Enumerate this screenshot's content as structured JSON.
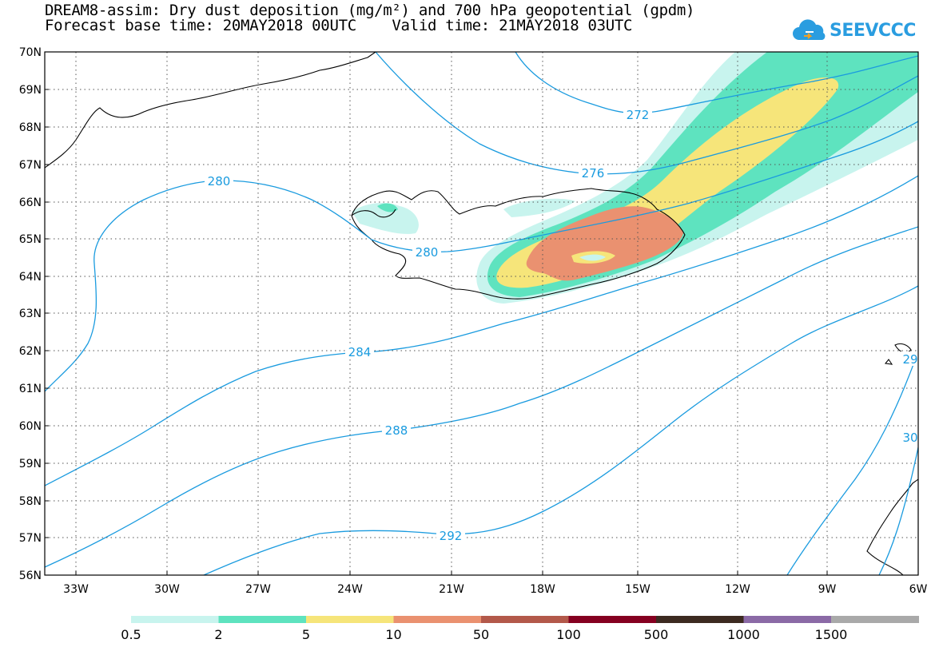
{
  "title": {
    "line1": "DREAM8-assim: Dry dust deposition (mg/m²) and 700 hPa geopotential (gpdm)",
    "line2": "Forecast base time: 20MAY2018 00UTC    Valid time: 21MAY2018 03UTC"
  },
  "logo": {
    "text": "SEEVCCC",
    "icon": "cloud-icon",
    "color": "#2a9de0"
  },
  "map": {
    "lat_labels": [
      "70N",
      "69N",
      "68N",
      "67N",
      "66N",
      "65N",
      "64N",
      "63N",
      "62N",
      "61N",
      "60N",
      "59N",
      "58N",
      "57N",
      "56N"
    ],
    "lon_labels": [
      "33W",
      "30W",
      "27W",
      "24W",
      "21W",
      "18W",
      "15W",
      "12W",
      "9W",
      "6W"
    ],
    "contour_color": "#1a9bdf",
    "contour_labels": [
      "272",
      "276",
      "280",
      "280",
      "284",
      "288",
      "292",
      "29",
      "30"
    ]
  },
  "colorbar": {
    "colors": [
      "#c8f4ee",
      "#5ee3bf",
      "#f6e57a",
      "#ea9170",
      "#b3594a",
      "#850020",
      "#3c2a20",
      "#8b6aa6",
      "#a9a9a9"
    ],
    "labels": [
      "0.5",
      "2",
      "5",
      "10",
      "50",
      "100",
      "500",
      "1000",
      "1500"
    ]
  }
}
